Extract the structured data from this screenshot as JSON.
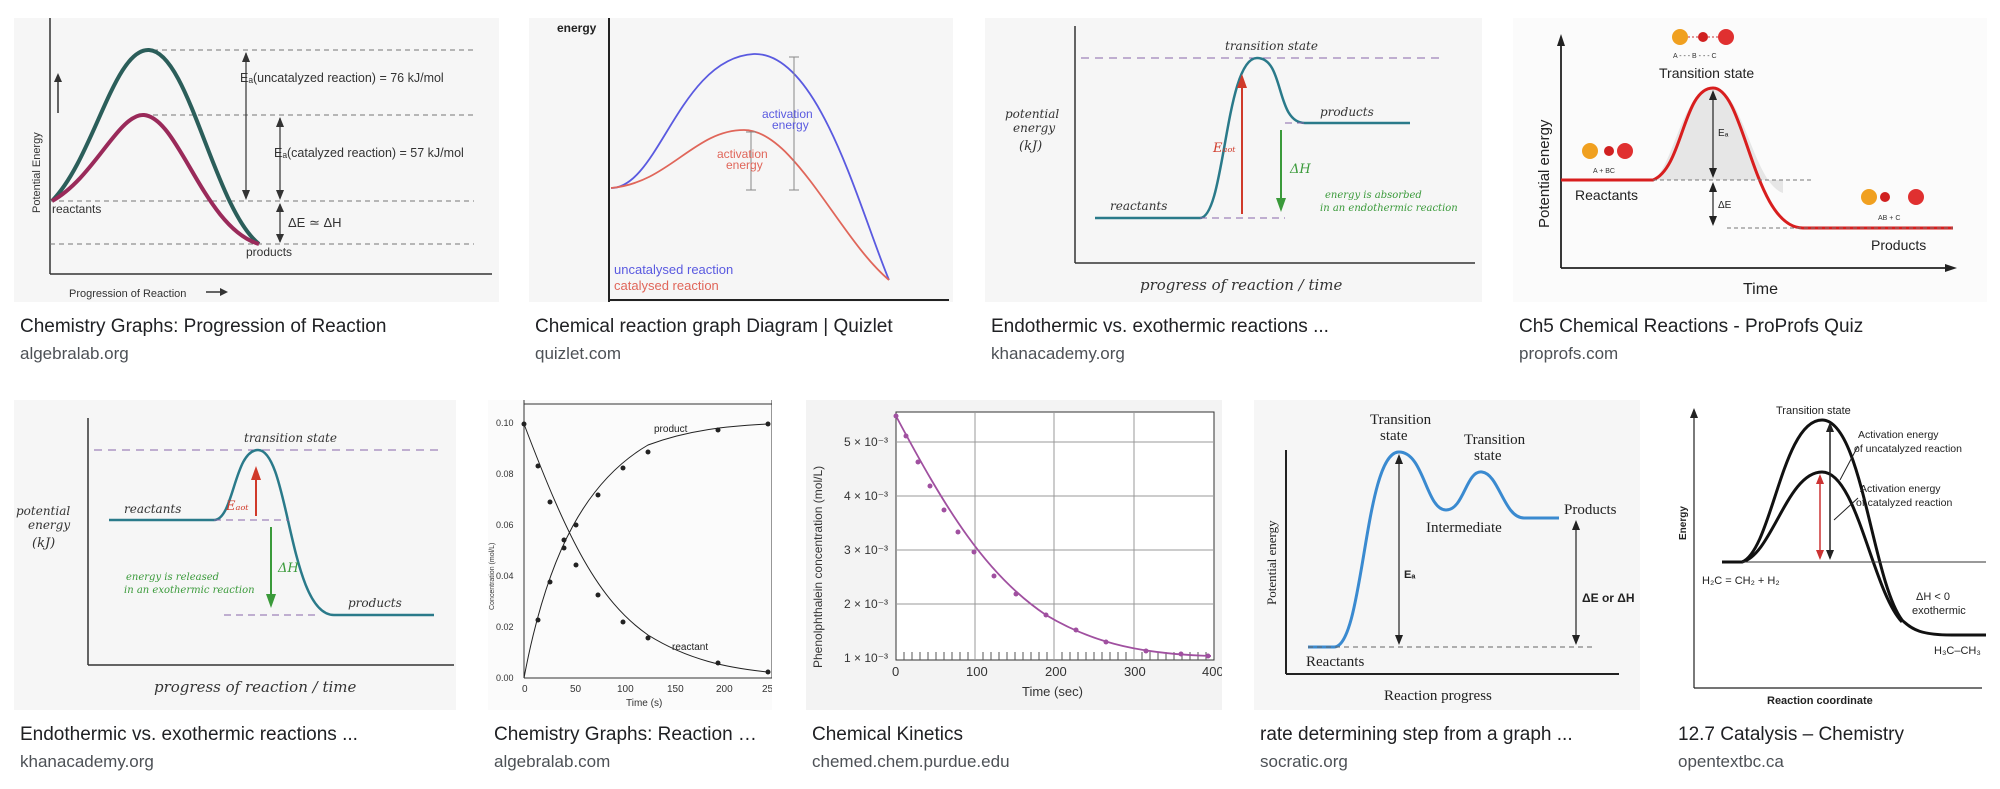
{
  "results": [
    {
      "caption": "Chemistry Graphs: Progression of Reaction",
      "source": "algebralab.org",
      "image": {
        "ylabel": "Potential Energy",
        "xlabel": "Progression of Reaction",
        "ea_uncat": "Eₐ(uncatalyzed reaction) = 76 kJ/mol",
        "ea_cat": "Eₐ(catalyzed reaction) = 57 kJ/mol",
        "delta": "ΔE ≃ ΔH",
        "reactants": "reactants",
        "products": "products"
      }
    },
    {
      "caption": "Chemical reaction graph Diagram | Quizlet",
      "source": "quizlet.com",
      "image": {
        "ylabel": "energy",
        "act1": "activation",
        "act1b": "energy",
        "act2": "activation",
        "act2b": "energy",
        "legend_uncat": "uncatalysed reaction",
        "legend_cat": "catalysed reaction"
      }
    },
    {
      "caption": "Endothermic vs. exothermic reactions ...",
      "source": "khanacademy.org",
      "image": {
        "ylabel1": "potential",
        "ylabel2": "energy",
        "ylabel3": "(kJ)",
        "ts": "transition state",
        "reactants": "reactants",
        "products": "products",
        "eact": "Eₐₒₜ",
        "dh": "ΔH",
        "note1": "energy is absorbed",
        "note2": "in an endothermic reaction",
        "xlabel": "progress of reaction / time"
      }
    },
    {
      "caption": "Ch5 Chemical Reactions - ProProfs Quiz",
      "source": "proprofs.com",
      "image": {
        "ylabel": "Potential energy",
        "xlabel": "Time",
        "ts": "Transition state",
        "ts_mol": "A - - - B - - - C",
        "reactants": "Reactants",
        "reactants_mol": "A + BC",
        "products": "Products",
        "products_mol": "AB + C",
        "ea": "Eₐ",
        "dh": "ΔE"
      }
    },
    {
      "caption": "Endothermic vs. exothermic reactions ...",
      "source": "khanacademy.org",
      "image": {
        "ylabel1": "potential",
        "ylabel2": "energy",
        "ylabel3": "(kJ)",
        "ts": "transition state",
        "reactants": "reactants",
        "products": "products",
        "eact": "Eₐₒₜ",
        "dh": "ΔH",
        "note1": "energy is released",
        "note2": "in an exothermic reaction",
        "xlabel": "progress of reaction / time"
      }
    },
    {
      "caption": "Chemistry Graphs: Reaction Rates",
      "source": "algebralab.com",
      "image": {
        "ylabel": "Concentration (mol/L)",
        "xlabel": "Time (s)",
        "product": "product",
        "reactant": "reactant",
        "yticks": [
          "0.00",
          "0.02",
          "0.04",
          "0.06",
          "0.08",
          "0.10"
        ],
        "xticks": [
          "0",
          "50",
          "100",
          "150",
          "200",
          "25"
        ]
      }
    },
    {
      "caption": "Chemical Kinetics",
      "source": "chemed.chem.purdue.edu",
      "image": {
        "ylabel": "Phenolphthalein concentration (mol/L)",
        "xlabel": "Time (sec)",
        "yticks": [
          "1 × 10⁻³",
          "2 × 10⁻³",
          "3 × 10⁻³",
          "4 × 10⁻³",
          "5 × 10⁻³"
        ],
        "xticks": [
          "0",
          "100",
          "200",
          "300",
          "400"
        ]
      }
    },
    {
      "caption": "rate determining step from a graph ...",
      "source": "socratic.org",
      "image": {
        "ylabel": "Potential energy",
        "xlabel": "Reaction progress",
        "ts1a": "Transition",
        "ts1b": "state",
        "ts2a": "Transition",
        "ts2b": "state",
        "intermediate": "Intermediate",
        "reactants": "Reactants",
        "products": "Products",
        "ea": "Eₐ",
        "de": "ΔE or ΔH"
      }
    },
    {
      "caption": "12.7 Catalysis – Chemistry",
      "source": "opentextbc.ca",
      "image": {
        "ts": "Transition state",
        "ylabel": "Energy",
        "xlabel": "Reaction coordinate",
        "uncat1": "Activation energy",
        "uncat2": "of uncatalyzed reaction",
        "cat1": "Activation energy",
        "cat2": "of catalyzed reaction",
        "reactant": "H₂C = CH₂ + H₂",
        "product": "H₃C–CH₃",
        "dh1": "ΔH < 0",
        "dh2": "exothermic"
      }
    }
  ]
}
